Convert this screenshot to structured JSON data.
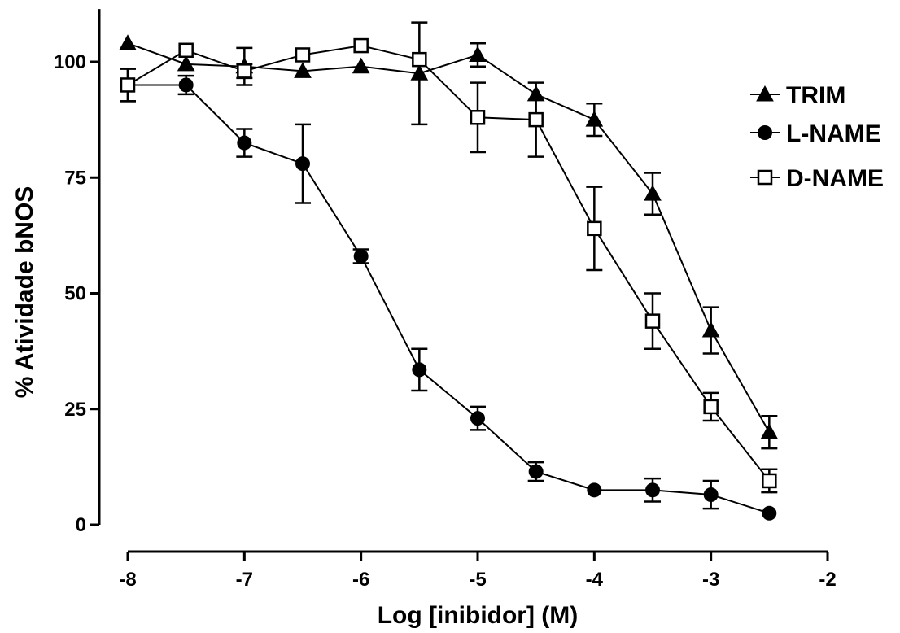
{
  "chart_data": {
    "type": "line",
    "xlabel": "Log [inibidor] (M)",
    "ylabel": "% Atividade bNOS",
    "xlim": [
      -8,
      -2
    ],
    "ylim": [
      0,
      110
    ],
    "xticks": [
      "-8",
      "-7",
      "-6",
      "-5",
      "-4",
      "-3",
      "-2"
    ],
    "yticks": [
      "0",
      "25",
      "50",
      "75",
      "100"
    ],
    "grid": false,
    "legend_position": "right",
    "series": [
      {
        "name": "TRIM",
        "marker": "filled-triangle",
        "x": [
          -8,
          -7.5,
          -7,
          -6.5,
          -6,
          -5.5,
          -5,
          -4.5,
          -4,
          -3.5,
          -3,
          -2.5
        ],
        "y": [
          104,
          99.5,
          99,
          98,
          99,
          97.5,
          101.5,
          93,
          87.5,
          71.5,
          42,
          20
        ],
        "err": [
          0,
          0,
          4,
          0,
          0,
          11,
          2.5,
          0,
          3.5,
          4.5,
          5,
          3.5
        ]
      },
      {
        "name": "L-NAME",
        "marker": "filled-circle",
        "x": [
          -8,
          -7.5,
          -7,
          -6.5,
          -6,
          -5.5,
          -5,
          -4.5,
          -4,
          -3.5,
          -3,
          -2.5
        ],
        "y": [
          95,
          95,
          82.5,
          78,
          58,
          33.5,
          23,
          11.5,
          7.5,
          7.5,
          6.5,
          2.5
        ],
        "err": [
          3.5,
          2,
          3,
          8.5,
          1.5,
          4.5,
          2.5,
          2,
          0,
          2.5,
          3,
          0
        ]
      },
      {
        "name": "D-NAME",
        "marker": "open-square",
        "x": [
          -8,
          -7.5,
          -7,
          -6.5,
          -6,
          -5.5,
          -5,
          -4.5,
          -4,
          -3.5,
          -3,
          -2.5
        ],
        "y": [
          95,
          102.5,
          98,
          101.5,
          103.5,
          100.5,
          88,
          87.5,
          64,
          44,
          25.5,
          9.5
        ],
        "err": [
          3.5,
          0,
          1.5,
          0,
          0,
          0,
          7.5,
          8,
          9,
          6,
          3,
          2.5
        ]
      }
    ]
  }
}
